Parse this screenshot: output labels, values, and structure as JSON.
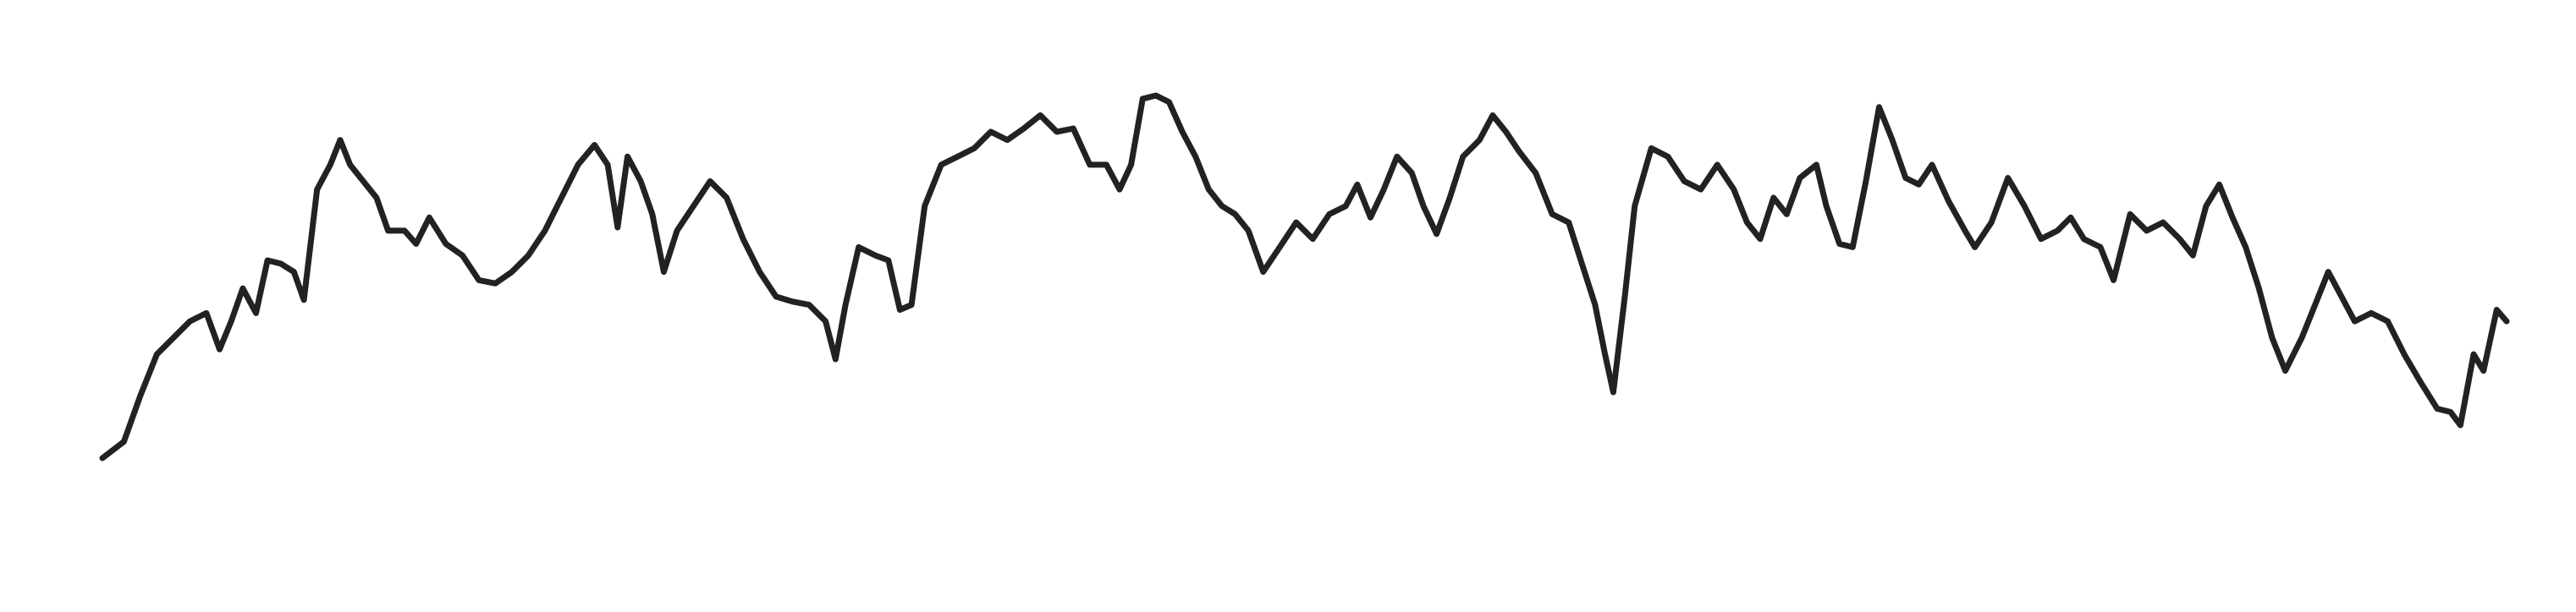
{
  "chart_data": {
    "type": "line",
    "color": "#222222",
    "x": [
      62,
      75,
      85,
      95,
      105,
      115,
      125,
      133,
      140,
      147,
      155,
      162,
      170,
      178,
      184,
      192,
      200,
      206,
      212,
      220,
      228,
      235,
      245,
      252,
      260,
      270,
      280,
      290,
      300,
      310,
      320,
      330,
      340,
      350,
      360,
      368,
      374,
      380,
      388,
      395,
      402,
      410,
      420,
      430,
      440,
      450,
      460,
      470,
      480,
      490,
      500,
      506,
      512,
      520,
      530,
      538,
      545,
      552,
      560,
      570,
      580,
      590,
      600,
      610,
      620,
      630,
      640,
      650,
      660,
      670,
      678,
      685,
      692,
      700,
      708,
      716,
      724,
      732,
      740,
      748,
      756,
      765,
      775,
      785,
      795,
      805,
      815,
      822,
      830,
      838,
      846,
      855,
      862,
      870,
      878,
      886,
      896,
      904,
      912,
      920,
      930,
      940,
      950,
      958,
      966,
      972,
      977,
      984,
      990,
      1000,
      1010,
      1020,
      1030,
      1040,
      1050,
      1058,
      1066,
      1074,
      1082,
      1090,
      1100,
      1106,
      1114,
      1122,
      1130,
      1138,
      1146,
      1154,
      1162,
      1170,
      1180,
      1190,
      1196,
      1206,
      1216,
      1226,
      1236,
      1246,
      1254,
      1262,
      1272,
      1280,
      1290,
      1300,
      1310,
      1320,
      1328,
      1336,
      1344,
      1352,
      1360,
      1368,
      1376,
      1384,
      1394,
      1402,
      1410,
      1418,
      1426,
      1436,
      1446,
      1456,
      1466,
      1476,
      1484,
      1490,
      1498,
      1504,
      1512,
      1518
    ],
    "values": [
      22,
      32,
      60,
      85,
      95,
      105,
      110,
      88,
      105,
      125,
      110,
      142,
      140,
      135,
      118,
      185,
      200,
      215,
      200,
      190,
      180,
      160,
      160,
      152,
      168,
      152,
      145,
      130,
      128,
      135,
      145,
      160,
      180,
      200,
      212,
      200,
      162,
      205,
      190,
      170,
      135,
      160,
      175,
      190,
      180,
      155,
      135,
      120,
      117,
      115,
      105,
      82,
      115,
      150,
      145,
      142,
      112,
      115,
      175,
      200,
      205,
      210,
      220,
      215,
      222,
      230,
      220,
      222,
      200,
      200,
      185,
      200,
      240,
      242,
      238,
      220,
      205,
      185,
      175,
      170,
      160,
      135,
      150,
      165,
      155,
      170,
      175,
      188,
      168,
      185,
      205,
      195,
      175,
      158,
      180,
      205,
      215,
      230,
      220,
      208,
      195,
      170,
      165,
      140,
      115,
      85,
      62,
      120,
      175,
      210,
      205,
      190,
      185,
      200,
      185,
      165,
      155,
      180,
      170,
      192,
      200,
      175,
      152,
      150,
      190,
      235,
      215,
      192,
      188,
      200,
      178,
      160,
      150,
      165,
      192,
      175,
      155,
      160,
      168,
      155,
      150,
      130,
      170,
      160,
      165,
      155,
      145,
      175,
      188,
      168,
      150,
      125,
      95,
      75,
      95,
      115,
      135,
      120,
      105,
      110,
      105,
      85,
      68,
      52,
      50,
      42,
      85,
      75,
      112,
      105
    ]
  }
}
